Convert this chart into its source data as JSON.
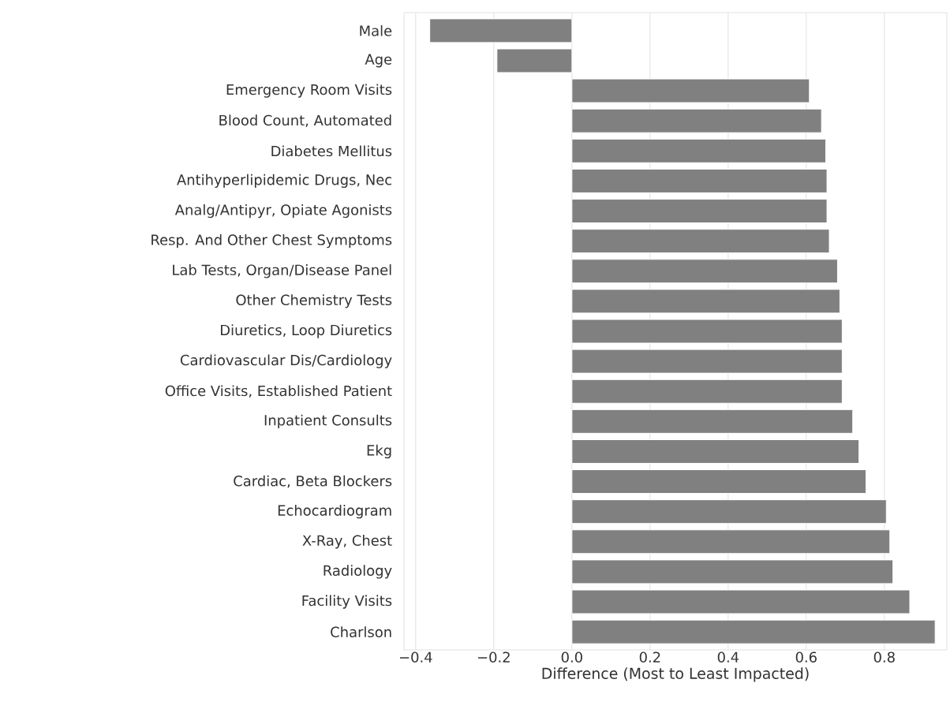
{
  "chart_data": {
    "type": "bar",
    "orientation": "horizontal",
    "xlabel": "Difference (Most to Least Impacted)",
    "categories": [
      "Male",
      "Age",
      "Emergency Room Visits",
      "Blood Count, Automated",
      "Diabetes Mellitus",
      "Antihyperlipidemic Drugs, Nec",
      "Analg/Antipyr, Opiate Agonists",
      "Resp. And Other Chest Symptoms",
      "Lab Tests, Organ/Disease Panel",
      "Other Chemistry Tests",
      "Diuretics, Loop Diuretics",
      "Cardiovascular Dis/Cardiology",
      "Office Visits, Established Patient",
      "Inpatient Consults",
      "Ekg",
      "Cardiac, Beta Blockers",
      "Echocardiogram",
      "X-Ray, Chest",
      "Radiology",
      "Facility Visits",
      "Charlson"
    ],
    "values": [
      -0.364,
      -0.192,
      0.608,
      0.639,
      0.65,
      0.653,
      0.653,
      0.659,
      0.68,
      0.686,
      0.692,
      0.692,
      0.692,
      0.719,
      0.735,
      0.753,
      0.805,
      0.814,
      0.822,
      0.865,
      0.93
    ],
    "color": "#808080",
    "xlim": [
      -0.43,
      0.96
    ],
    "xticks": [
      {
        "value": -0.4,
        "label": "−0.4"
      },
      {
        "value": -0.2,
        "label": "−0.2"
      },
      {
        "value": 0,
        "label": "0.0"
      },
      0.2,
      0.4,
      0.6,
      0.8
    ],
    "grid": "x"
  }
}
